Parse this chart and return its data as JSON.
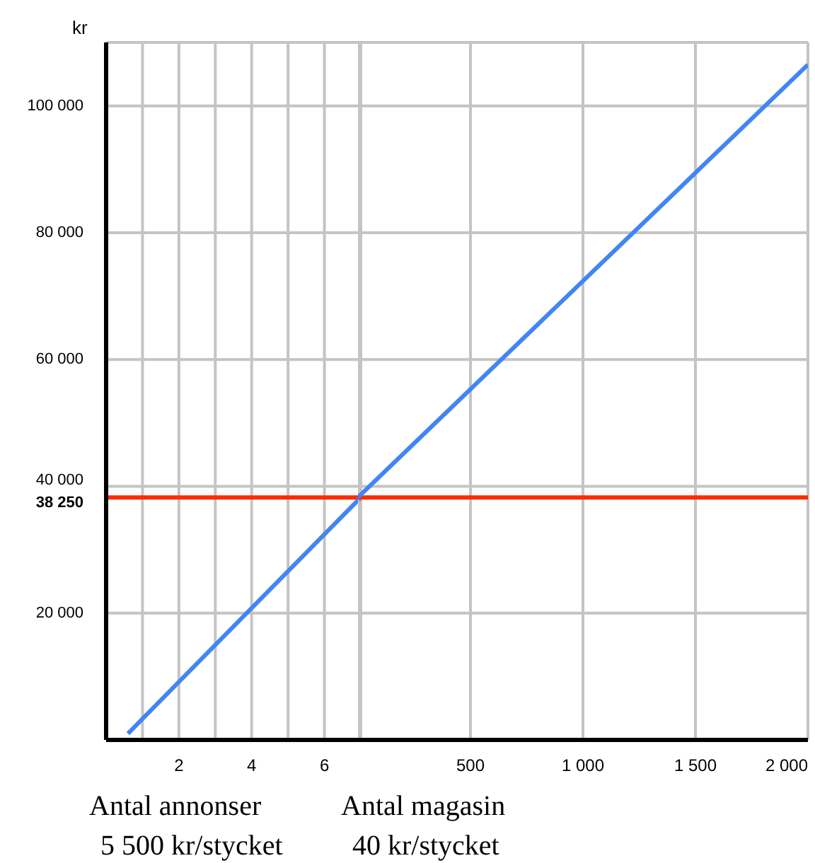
{
  "chart_data": [
    {
      "type": "line",
      "xlabel": "Antal annonser",
      "ylabel": "kr",
      "annotations": [
        "5 500 kr/stycket"
      ],
      "x": [
        0.6,
        7
      ],
      "series": [
        {
          "color": "#4285f4",
          "values": [
            1000,
            38250
          ]
        }
      ],
      "xlim": [
        0,
        7
      ],
      "xticks": [
        {
          "value": 1,
          "label": null
        },
        2,
        {
          "value": 3,
          "label": null
        },
        4,
        {
          "value": 5,
          "label": null
        },
        6,
        {
          "value": 7,
          "label": null
        }
      ],
      "ylim": [
        0,
        110000
      ],
      "yticks": [
        {
          "value": 20000,
          "label": "20 000"
        },
        {
          "value": 38250,
          "label": "38 250"
        },
        {
          "value": 40000,
          "label": "40 000"
        },
        {
          "value": 60000,
          "label": "60 000"
        },
        {
          "value": 80000,
          "label": "80 000"
        },
        {
          "value": 100000,
          "label": "100 000"
        }
      ],
      "ref_lines": [
        {
          "axis": "y",
          "value": 38250,
          "color": "#ff2a00"
        }
      ],
      "grid": true,
      "marker": "none"
    },
    {
      "type": "line",
      "xlabel": "Antal magasin",
      "annotations": [
        "40 kr/stycket"
      ],
      "x": [
        0,
        2000
      ],
      "series": [
        {
          "color": "#4285f4",
          "values": [
            38250,
            106500
          ]
        }
      ],
      "xlim": [
        0,
        2000
      ],
      "xticks": [
        {
          "value": 500,
          "label": "500"
        },
        {
          "value": 1000,
          "label": "1 000"
        },
        {
          "value": 1500,
          "label": "1 500"
        },
        {
          "value": 2000,
          "label": "2 000"
        }
      ],
      "ylim": [
        0,
        110000
      ],
      "yticks": [
        {
          "value": 20000,
          "label": null
        },
        {
          "value": 40000,
          "label": null
        },
        {
          "value": 60000,
          "label": null
        },
        {
          "value": 80000,
          "label": null
        },
        {
          "value": 100000,
          "label": null
        }
      ],
      "tick_labels": "x",
      "ref_lines": [
        {
          "axis": "y",
          "value": 38250,
          "color": "#ff2a00"
        }
      ],
      "grid": true,
      "marker": "none"
    }
  ]
}
